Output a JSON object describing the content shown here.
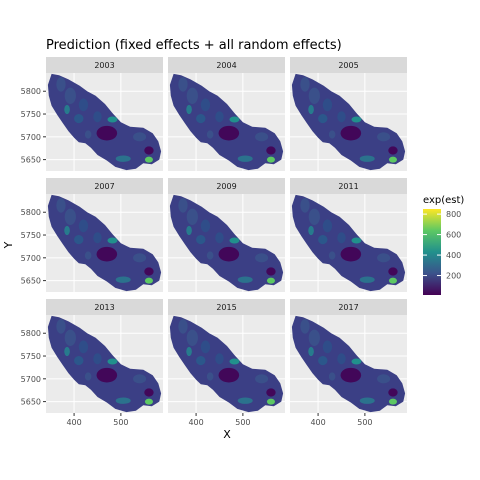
{
  "chart_data": {
    "type": "heatmap",
    "title": "Prediction (fixed effects + all random effects)",
    "xlabel": "X",
    "ylabel": "Y",
    "facets": [
      "2003",
      "2004",
      "2005",
      "2007",
      "2009",
      "2011",
      "2013",
      "2015",
      "2017"
    ],
    "x_ticks": [
      400,
      500
    ],
    "y_ticks": [
      5650,
      5700,
      5750,
      5800
    ],
    "xlim": [
      340,
      590
    ],
    "ylim": [
      5625,
      5840
    ],
    "legend": {
      "title": "exp(est)",
      "breaks": [
        200,
        400,
        600,
        800
      ],
      "range": [
        10,
        850
      ],
      "colors": [
        "#440154",
        "#3b528b",
        "#21908c",
        "#5dc863",
        "#fde725"
      ]
    },
    "grid": true,
    "legend_position": "right",
    "background_panel": "#ebebeb",
    "strip_color": "#d9d9d9"
  }
}
